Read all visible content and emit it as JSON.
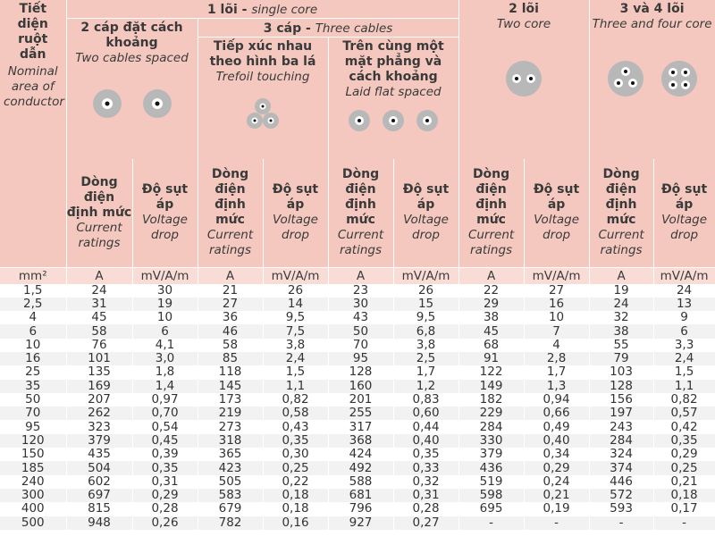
{
  "header": {
    "conductor": {
      "vi": "Tiết diện ruột dẫn",
      "en": "Nominal area of conductor"
    },
    "single_core": {
      "vi": "1 lõi - ",
      "en": "single core"
    },
    "two_cables": {
      "vi": "2 cáp đặt cách khoảng",
      "en": "Two cables spaced"
    },
    "three_cables": {
      "vi": "3 cáp - ",
      "en": "Three cables"
    },
    "trefoil": {
      "vi": "Tiếp xúc nhau theo hình ba lá",
      "en": "Trefoil touching"
    },
    "laid_flat": {
      "vi": "Trên cùng một mặt phẳng và cách khoảng",
      "en": "Laid flat spaced"
    },
    "two_core": {
      "vi": "2 lõi",
      "en": "Two core"
    },
    "three_four_core": {
      "vi": "3 và 4 lõi",
      "en": "Three and four core"
    },
    "current": {
      "vi": "Dòng điện định mức",
      "en": "Current ratings"
    },
    "voltage": {
      "vi": "Độ sụt áp",
      "en": "Voltage drop"
    }
  },
  "units": {
    "area": "mm²",
    "current": "A",
    "voltage": "mV/A/m"
  },
  "rows": [
    [
      "1,5",
      "24",
      "30",
      "21",
      "26",
      "23",
      "26",
      "22",
      "27",
      "19",
      "24"
    ],
    [
      "2,5",
      "31",
      "19",
      "27",
      "14",
      "30",
      "15",
      "29",
      "16",
      "24",
      "13"
    ],
    [
      "4",
      "45",
      "10",
      "36",
      "9,5",
      "43",
      "9,5",
      "38",
      "10",
      "32",
      "9"
    ],
    [
      "6",
      "58",
      "6",
      "46",
      "7,5",
      "50",
      "6,8",
      "45",
      "7",
      "38",
      "6"
    ],
    [
      "10",
      "76",
      "4,1",
      "58",
      "3,8",
      "70",
      "3,8",
      "68",
      "4",
      "55",
      "3,3"
    ],
    [
      "16",
      "101",
      "3,0",
      "85",
      "2,4",
      "95",
      "2,5",
      "91",
      "2,8",
      "79",
      "2,4"
    ],
    [
      "25",
      "135",
      "1,8",
      "118",
      "1,5",
      "128",
      "1,7",
      "122",
      "1,7",
      "103",
      "1,5"
    ],
    [
      "35",
      "169",
      "1,4",
      "145",
      "1,1",
      "160",
      "1,2",
      "149",
      "1,3",
      "128",
      "1,1"
    ],
    [
      "50",
      "207",
      "0,97",
      "173",
      "0,82",
      "201",
      "0,83",
      "182",
      "0,94",
      "156",
      "0,82"
    ],
    [
      "70",
      "262",
      "0,70",
      "219",
      "0,58",
      "255",
      "0,60",
      "229",
      "0,66",
      "197",
      "0,57"
    ],
    [
      "95",
      "323",
      "0,54",
      "273",
      "0,43",
      "317",
      "0,44",
      "284",
      "0,49",
      "243",
      "0,42"
    ],
    [
      "120",
      "379",
      "0,45",
      "318",
      "0,35",
      "368",
      "0,40",
      "330",
      "0,40",
      "284",
      "0,35"
    ],
    [
      "150",
      "435",
      "0,39",
      "365",
      "0,30",
      "424",
      "0,35",
      "379",
      "0,34",
      "324",
      "0,29"
    ],
    [
      "185",
      "504",
      "0,35",
      "423",
      "0,25",
      "492",
      "0,33",
      "436",
      "0,29",
      "374",
      "0,25"
    ],
    [
      "240",
      "602",
      "0,31",
      "505",
      "0,22",
      "588",
      "0,32",
      "519",
      "0,24",
      "446",
      "0,21"
    ],
    [
      "300",
      "697",
      "0,29",
      "583",
      "0,18",
      "681",
      "0,31",
      "598",
      "0,21",
      "572",
      "0,18"
    ],
    [
      "400",
      "815",
      "0,28",
      "679",
      "0,18",
      "796",
      "0,28",
      "695",
      "0,19",
      "593",
      "0,17"
    ],
    [
      "500",
      "948",
      "0,26",
      "782",
      "0,16",
      "927",
      "0,27",
      "-",
      "-",
      "-",
      "-"
    ]
  ]
}
